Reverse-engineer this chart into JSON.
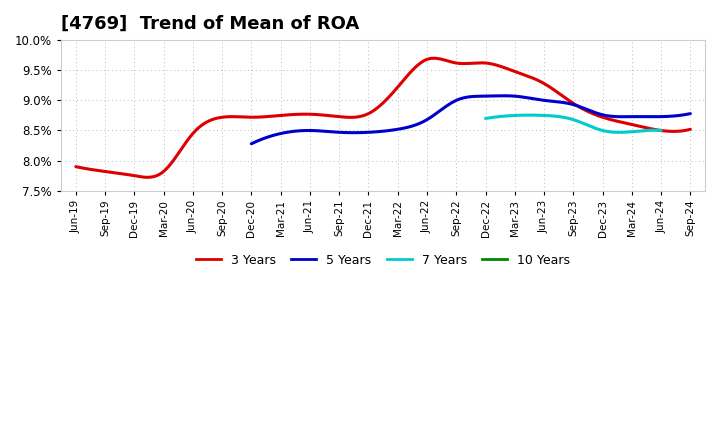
{
  "title": "[4769]  Trend of Mean of ROA",
  "xlabels": [
    "Jun-19",
    "Sep-19",
    "Dec-19",
    "Mar-20",
    "Jun-20",
    "Sep-20",
    "Dec-20",
    "Mar-21",
    "Jun-21",
    "Sep-21",
    "Dec-21",
    "Mar-22",
    "Jun-22",
    "Sep-22",
    "Dec-22",
    "Mar-23",
    "Jun-23",
    "Sep-23",
    "Dec-23",
    "Mar-24",
    "Jun-24",
    "Sep-24"
  ],
  "ylim": [
    0.075,
    0.1
  ],
  "yticks": [
    0.075,
    0.08,
    0.085,
    0.09,
    0.095,
    0.1
  ],
  "ytick_labels": [
    "7.5%",
    "8.0%",
    "8.5%",
    "9.0%",
    "9.5%",
    "10.0%"
  ],
  "series": {
    "3 Years": {
      "color": "#dd0000",
      "values": [
        0.079,
        0.0782,
        0.0775,
        0.0782,
        0.0845,
        0.0872,
        0.0872,
        0.0875,
        0.0877,
        0.0873,
        0.0878,
        0.0922,
        0.0968,
        0.0962,
        0.0962,
        0.0948,
        0.0928,
        0.0895,
        0.0872,
        0.086,
        0.085,
        0.0852
      ]
    },
    "5 Years": {
      "color": "#0000cc",
      "values": [
        null,
        null,
        null,
        null,
        null,
        null,
        0.0828,
        0.0845,
        0.085,
        0.0847,
        0.0847,
        0.0852,
        0.0868,
        0.09,
        0.0907,
        0.0907,
        0.09,
        0.0893,
        0.0876,
        0.0873,
        0.0873,
        0.0878
      ]
    },
    "7 Years": {
      "color": "#00cccc",
      "values": [
        null,
        null,
        null,
        null,
        null,
        null,
        null,
        null,
        null,
        null,
        null,
        null,
        null,
        null,
        0.087,
        0.0875,
        0.0875,
        0.0868,
        0.085,
        0.0848,
        0.085,
        null
      ]
    },
    "10 Years": {
      "color": "#008800",
      "values": [
        null,
        null,
        null,
        null,
        null,
        null,
        null,
        null,
        null,
        null,
        null,
        null,
        null,
        null,
        null,
        null,
        null,
        null,
        null,
        null,
        null,
        null
      ]
    }
  },
  "background_color": "#ffffff",
  "plot_background": "#ffffff",
  "grid_color": "#bbbbbb",
  "title_fontsize": 13,
  "legend_fontsize": 9,
  "linewidth": 2.2
}
